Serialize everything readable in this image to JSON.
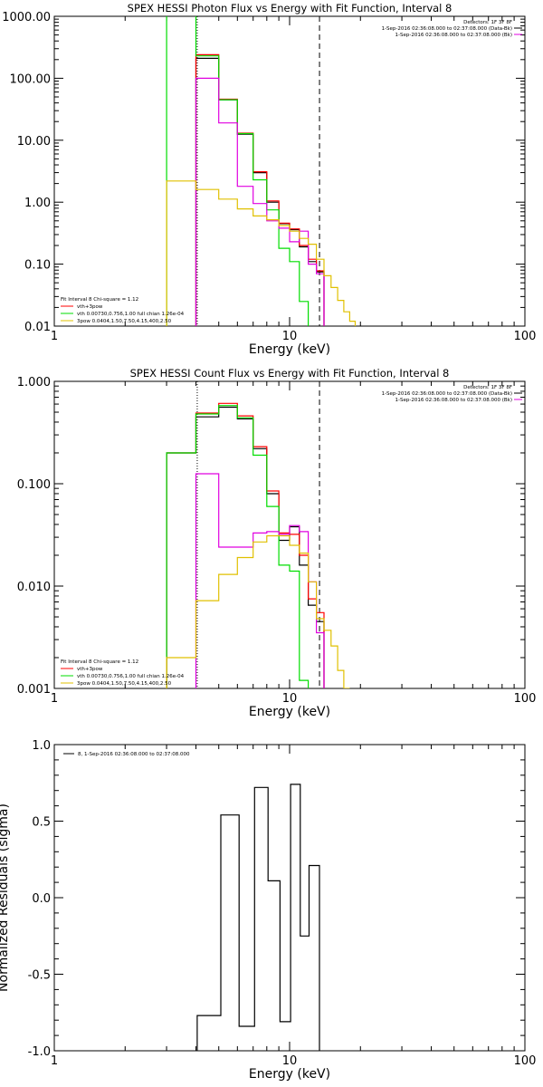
{
  "colors": {
    "black": "#000000",
    "red": "#ff0000",
    "green": "#00dd00",
    "magenta": "#e000e0",
    "yellow": "#e0c000"
  },
  "chart_data": [
    {
      "type": "line",
      "title": "SPEX HESSI Photon Flux vs Energy with Fit Function, Interval 8",
      "xlabel": "Energy (keV)",
      "ylabel": "",
      "xscale": "log",
      "yscale": "log",
      "xlim": [
        1,
        100
      ],
      "ylim": [
        0.01,
        1000
      ],
      "xticks": [
        "1",
        "10",
        "100"
      ],
      "yticks": [
        "0.01",
        "0.10",
        "1.00",
        "10.00",
        "100.00",
        "1000.00"
      ],
      "legend_right": [
        "Detectors: 1F 3F 8F",
        "1-Sep-2016 02:36:08.000 to 02:37:08.000 (Data-Bk)",
        "1-Sep-2016 02:36:08.000 to 02:37:08.000 (Bk)"
      ],
      "legend_left": [
        "Fit Interval 8   Chi-square = 1.12",
        "vth+3pow",
        "vth 0.00730,0.756,1.00   full chian 1.26e-04",
        "3pow 0.0404,1.50,7.50,4.15,400,2.50"
      ],
      "edges": [
        3,
        4,
        5,
        6,
        7,
        8,
        9,
        10,
        11,
        12,
        13,
        14,
        15,
        16,
        17,
        18,
        19,
        20,
        21,
        22
      ],
      "vlines": {
        "dotted": 4.05,
        "dashed": 13.4
      },
      "series": [
        {
          "color": "black",
          "values": [
            null,
            210,
            45,
            12.5,
            3.0,
            1.0,
            0.45,
            0.36,
            0.19,
            0.11,
            0.075,
            null,
            null,
            null,
            null,
            null,
            null,
            null,
            null
          ]
        },
        {
          "color": "red",
          "values": [
            null,
            240,
            46,
            13.0,
            3.1,
            1.05,
            0.46,
            0.37,
            0.2,
            0.12,
            0.078,
            null,
            null,
            null,
            null,
            null,
            null,
            null,
            null
          ]
        },
        {
          "color": "green",
          "values": [
            1100,
            230,
            45,
            12.8,
            2.3,
            0.75,
            0.18,
            0.11,
            0.025,
            null,
            null,
            null,
            null,
            null,
            null,
            null,
            null,
            null,
            null
          ]
        },
        {
          "color": "magenta",
          "values": [
            null,
            100,
            19,
            1.8,
            0.95,
            0.5,
            0.38,
            0.23,
            0.34,
            0.1,
            0.07,
            null,
            null,
            null,
            null,
            null,
            null,
            null,
            null
          ]
        },
        {
          "color": "yellow",
          "values": [
            2.2,
            1.6,
            1.12,
            0.78,
            0.6,
            0.52,
            0.42,
            0.34,
            0.26,
            0.21,
            0.12,
            0.065,
            0.042,
            0.026,
            0.017,
            0.012,
            null,
            null,
            null
          ]
        }
      ]
    },
    {
      "type": "line",
      "title": "SPEX HESSI Count Flux vs Energy with Fit Function, Interval 8",
      "xlabel": "Energy (keV)",
      "ylabel": "",
      "xscale": "log",
      "yscale": "log",
      "xlim": [
        1,
        100
      ],
      "ylim": [
        0.001,
        1
      ],
      "xticks": [
        "1",
        "10",
        "100"
      ],
      "yticks": [
        "0.001",
        "0.010",
        "0.100",
        "1.000"
      ],
      "legend_right": [
        "Detectors: 1F 3F 8F",
        "1-Sep-2016 02:36:08.000 to 02:37:08.000 (Data-Bk)",
        "1-Sep-2016 02:36:08.000 to 02:37:08.000 (Bk)"
      ],
      "legend_left": [
        "Fit Interval 8   Chi-square = 1.12",
        "vth+3pow",
        "vth 0.00730,0.756,1.00   full chian 1.26e-04",
        "3pow 0.0404,1.50,7.50,4.15,400,2.50"
      ],
      "edges": [
        3,
        4,
        5,
        6,
        7,
        8,
        9,
        10,
        11,
        12,
        13,
        14,
        15,
        16,
        17,
        18,
        19,
        20,
        21,
        22
      ],
      "vlines": {
        "dotted": 4.05,
        "dashed": 13.4
      },
      "series": [
        {
          "color": "black",
          "values": [
            0.2,
            0.45,
            0.56,
            0.43,
            0.22,
            0.08,
            0.028,
            0.038,
            0.016,
            0.0065,
            0.0045,
            null,
            null,
            null,
            null,
            null,
            null,
            null,
            null
          ]
        },
        {
          "color": "red",
          "values": [
            0.2,
            0.49,
            0.61,
            0.46,
            0.23,
            0.085,
            0.033,
            0.032,
            0.02,
            0.0075,
            0.0055,
            null,
            null,
            null,
            null,
            null,
            null,
            null,
            null
          ]
        },
        {
          "color": "green",
          "values": [
            0.2,
            0.48,
            0.58,
            0.44,
            0.19,
            0.06,
            0.016,
            0.014,
            0.0012,
            null,
            null,
            null,
            null,
            null,
            null,
            null,
            null,
            null,
            null
          ]
        },
        {
          "color": "magenta",
          "values": [
            null,
            0.125,
            0.024,
            0.024,
            0.033,
            0.034,
            0.032,
            0.039,
            0.034,
            0.011,
            0.0035,
            null,
            null,
            null,
            null,
            null,
            null,
            null,
            null
          ]
        },
        {
          "color": "yellow",
          "values": [
            0.002,
            0.0072,
            0.013,
            0.019,
            0.027,
            0.031,
            0.031,
            0.025,
            0.021,
            0.011,
            0.0048,
            0.0037,
            0.0026,
            0.0015,
            0.001,
            null,
            null,
            null,
            null
          ]
        }
      ]
    },
    {
      "type": "line",
      "title": "",
      "xlabel": "Energy (keV)",
      "ylabel": "Normalized Residuals (sigma)",
      "xscale": "log",
      "yscale": "linear",
      "xlim": [
        1,
        100
      ],
      "ylim": [
        -1.0,
        1.0
      ],
      "xticks": [
        "1",
        "10",
        "100"
      ],
      "yticks": [
        "-1.0",
        "-0.5",
        "0.0",
        "0.5",
        "1.0"
      ],
      "legend": "8, 1-Sep-2016 02:36:08.000 to 02:37:08.000",
      "edges": [
        4.05,
        5.1,
        6.1,
        7.1,
        8.1,
        9.1,
        10.1,
        11.1,
        12.1,
        13.4
      ],
      "residuals": [
        -0.77,
        0.54,
        -0.84,
        0.72,
        0.11,
        -0.81,
        0.74,
        -0.25,
        0.21
      ]
    }
  ]
}
